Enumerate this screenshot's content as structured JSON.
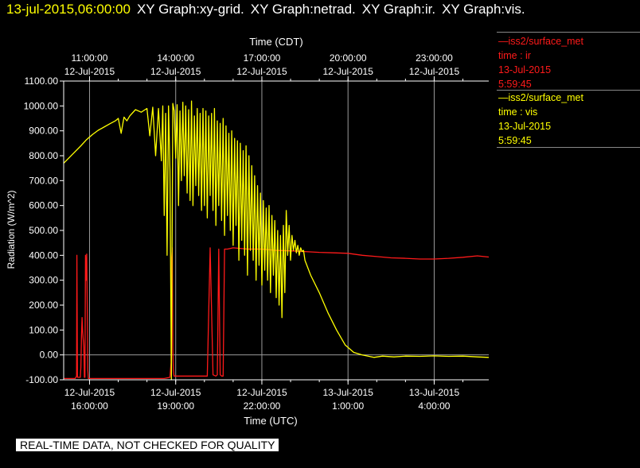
{
  "header": {
    "timestamp": "13-jul-2015,06:00:00",
    "titles": [
      "XY Graph:xy-grid.",
      "XY Graph:netrad.",
      "XY Graph:ir.",
      "XY Graph:vis."
    ]
  },
  "legend": [
    {
      "line": "—iss2/surface_met",
      "var": "time : ir",
      "date": "13-Jul-2015",
      "time": "5:59:45",
      "color": "#ff1a1a"
    },
    {
      "line": "—iss2/surface_met",
      "var": "time : vis",
      "date": "13-Jul-2015",
      "time": "5:59:45",
      "color": "#ffff00"
    }
  ],
  "note": "REAL-TIME DATA, NOT CHECKED FOR QUALITY",
  "chart_data": {
    "type": "line",
    "title": "",
    "ylabel": "Radiation (W/m^2)",
    "xlabel_bottom": "Time (UTC)",
    "xlabel_top": "Time (CDT)",
    "ylim": [
      -100,
      1100
    ],
    "yticks": [
      -100,
      0,
      100,
      200,
      300,
      400,
      500,
      600,
      700,
      800,
      900,
      1000,
      1100
    ],
    "ytick_labels": [
      "-100.00",
      "0.00",
      "100.00",
      "200.00",
      "300.00",
      "400.00",
      "500.00",
      "600.00",
      "700.00",
      "800.00",
      "900.00",
      "1000.00",
      "1100.00"
    ],
    "xlim_hours_utc": [
      15.1,
      29.9
    ],
    "bottom_ticks": [
      {
        "at": 16,
        "date": "12-Jul-2015",
        "time": "16:00:00"
      },
      {
        "at": 19,
        "date": "12-Jul-2015",
        "time": "19:00:00"
      },
      {
        "at": 22,
        "date": "12-Jul-2015",
        "time": "22:00:00"
      },
      {
        "at": 25,
        "date": "13-Jul-2015",
        "time": "1:00:00"
      },
      {
        "at": 28,
        "date": "13-Jul-2015",
        "time": "4:00:00"
      }
    ],
    "top_ticks": [
      {
        "at": 16,
        "time": "11:00:00",
        "date": "12-Jul-2015"
      },
      {
        "at": 19,
        "time": "14:00:00",
        "date": "12-Jul-2015"
      },
      {
        "at": 22,
        "time": "17:00:00",
        "date": "12-Jul-2015"
      },
      {
        "at": 25,
        "time": "20:00:00",
        "date": "12-Jul-2015"
      },
      {
        "at": 28,
        "time": "23:00:00",
        "date": "12-Jul-2015"
      }
    ],
    "grid": true,
    "series": [
      {
        "name": "iss2/surface_met time : ir",
        "color": "#ff1a1a",
        "x": [
          15.1,
          15.5,
          15.55,
          15.56,
          15.58,
          15.6,
          15.68,
          15.7,
          15.72,
          15.74,
          15.76,
          15.8,
          15.82,
          15.84,
          15.86,
          15.88,
          15.9,
          15.92,
          15.94,
          15.96,
          16.0,
          16.4,
          16.8,
          18.2,
          18.6,
          18.8,
          18.84,
          18.86,
          18.88,
          18.9,
          18.92,
          18.94,
          18.96,
          18.98,
          19.0,
          19.1,
          19.15,
          19.2,
          19.25,
          19.3,
          19.35,
          19.4,
          19.45,
          19.5,
          19.55,
          19.6,
          19.65,
          19.7,
          19.75,
          19.8,
          19.85,
          19.9,
          19.95,
          20.0,
          20.05,
          20.1,
          20.2,
          20.3,
          20.4,
          20.45,
          20.5,
          20.55,
          20.6,
          20.65,
          20.7,
          20.8,
          21.0,
          21.5,
          22.0,
          22.5,
          23.0,
          23.5,
          24.0,
          24.5,
          25.0,
          25.5,
          26.0,
          26.5,
          27.0,
          27.5,
          28.0,
          28.5,
          29.0,
          29.5,
          29.9
        ],
        "y": [
          -95,
          -95,
          -85,
          400,
          -90,
          -90,
          -90,
          -50,
          80,
          150,
          95,
          30,
          -90,
          -90,
          400,
          300,
          405,
          200,
          -60,
          -95,
          -95,
          -95,
          -95,
          -95,
          -95,
          -90,
          -30,
          390,
          430,
          30,
          -60,
          -85,
          -85,
          -85,
          -85,
          -85,
          -85,
          -85,
          -85,
          -85,
          -85,
          -85,
          -85,
          -85,
          -85,
          -85,
          -85,
          -85,
          -85,
          -85,
          -85,
          -85,
          -85,
          -85,
          -85,
          -85,
          430,
          -80,
          -85,
          -80,
          425,
          -80,
          -85,
          -85,
          425,
          425,
          430,
          425,
          425,
          420,
          418,
          415,
          412,
          410,
          408,
          400,
          395,
          390,
          388,
          385,
          385,
          388,
          392,
          398,
          393
        ]
      },
      {
        "name": "iss2/surface_met time : vis",
        "color": "#ffff00",
        "x": [
          15.1,
          15.4,
          15.7,
          15.9,
          16.1,
          16.3,
          16.5,
          16.7,
          16.9,
          17.0,
          17.1,
          17.2,
          17.3,
          17.4,
          17.6,
          17.8,
          18.0,
          18.1,
          18.2,
          18.3,
          18.4,
          18.5,
          18.55,
          18.6,
          18.65,
          18.7,
          18.75,
          18.8,
          18.85,
          18.9,
          18.95,
          19.0,
          19.05,
          19.1,
          19.15,
          19.2,
          19.25,
          19.3,
          19.35,
          19.4,
          19.45,
          19.5,
          19.55,
          19.6,
          19.65,
          19.7,
          19.75,
          19.8,
          19.85,
          19.9,
          19.95,
          20.0,
          20.05,
          20.1,
          20.15,
          20.2,
          20.25,
          20.3,
          20.35,
          20.4,
          20.45,
          20.5,
          20.55,
          20.6,
          20.65,
          20.7,
          20.75,
          20.8,
          20.85,
          20.9,
          20.95,
          21.0,
          21.05,
          21.1,
          21.15,
          21.2,
          21.25,
          21.3,
          21.35,
          21.4,
          21.45,
          21.5,
          21.55,
          21.6,
          21.65,
          21.7,
          21.75,
          21.8,
          21.85,
          21.9,
          21.95,
          22.0,
          22.05,
          22.1,
          22.15,
          22.2,
          22.25,
          22.3,
          22.35,
          22.4,
          22.45,
          22.5,
          22.55,
          22.6,
          22.65,
          22.7,
          22.75,
          22.8,
          22.85,
          22.9,
          22.95,
          23.0,
          23.05,
          23.1,
          23.15,
          23.2,
          23.25,
          23.3,
          23.35,
          23.4,
          23.45,
          23.5,
          23.7,
          24.0,
          24.3,
          24.6,
          24.9,
          25.2,
          25.5,
          25.7,
          25.9,
          26.2,
          26.6,
          27.0,
          27.5,
          28.0,
          28.5,
          29.0,
          29.5,
          29.9
        ],
        "y": [
          770,
          805,
          840,
          865,
          885,
          902,
          915,
          928,
          940,
          950,
          890,
          955,
          940,
          960,
          985,
          975,
          990,
          880,
          995,
          800,
          990,
          780,
          1000,
          560,
          970,
          400,
          1000,
          740,
          -100,
          1010,
          980,
          790,
          1005,
          600,
          980,
          700,
          1015,
          720,
          1000,
          650,
          985,
          620,
          1020,
          600,
          960,
          680,
          990,
          640,
          970,
          580,
          990,
          600,
          980,
          550,
          960,
          640,
          970,
          580,
          990,
          520,
          940,
          600,
          930,
          540,
          950,
          480,
          920,
          560,
          890,
          500,
          900,
          440,
          870,
          520,
          860,
          380,
          850,
          460,
          820,
          400,
          840,
          320,
          800,
          420,
          760,
          380,
          720,
          300,
          680,
          360,
          650,
          280,
          620,
          340,
          590,
          300,
          600,
          250,
          560,
          320,
          540,
          230,
          500,
          200,
          480,
          150,
          520,
          250,
          580,
          400,
          520,
          380,
          480,
          420,
          460,
          410,
          440,
          400,
          430,
          415,
          420,
          380,
          320,
          250,
          170,
          100,
          40,
          10,
          0,
          -5,
          -10,
          -5,
          -8,
          -5,
          -6,
          -4,
          -6,
          -5,
          -8,
          -10
        ]
      }
    ]
  }
}
